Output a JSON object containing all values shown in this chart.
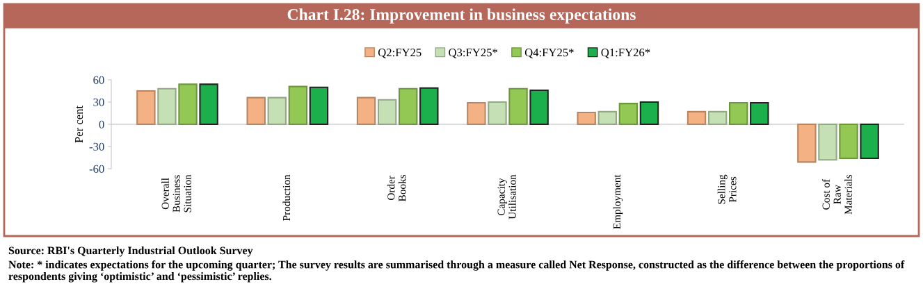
{
  "chart_data": {
    "type": "bar",
    "title": "Chart I.28: Improvement in business expectations",
    "ylabel": "Per cent",
    "categories": [
      "Overall\nBusiness\nSituation",
      "Production",
      "Order\nBooks",
      "Capacity\nUtilisation",
      "Employment",
      "Selling\nPrices",
      "Cost of\nRaw\nMaterials"
    ],
    "series": [
      {
        "name": "Q2:FY25",
        "color": "#f4b183",
        "values": [
          45,
          36,
          36,
          29,
          16,
          17,
          -51
        ]
      },
      {
        "name": "Q3:FY25*",
        "color": "#c5e0b4",
        "values": [
          48,
          36,
          33,
          30,
          17,
          17,
          -48
        ]
      },
      {
        "name": "Q4:FY25*",
        "color": "#92c853",
        "values": [
          54,
          51,
          48,
          48,
          28,
          29,
          -46
        ]
      },
      {
        "name": "Q1:FY26*",
        "color": "#1bb04b",
        "values": [
          54,
          50,
          49,
          46,
          30,
          29,
          -46
        ]
      }
    ],
    "ylim": [
      -60,
      60
    ],
    "yticks": [
      -60,
      -30,
      0,
      30,
      60
    ],
    "ref_lines": [
      {
        "axis": "y",
        "value": 0,
        "color": "#d0d0d0"
      }
    ],
    "legend": "top",
    "annotations": [
      "Source: RBI's Quarterly Industrial Outlook Survey",
      "Note: * indicates expectations for the upcoming quarter; The survey results are summarised through a measure called Net Response, constructed as the difference between the proportions of respondents giving ‘optimistic’ and ‘pessimistic’ replies."
    ]
  }
}
